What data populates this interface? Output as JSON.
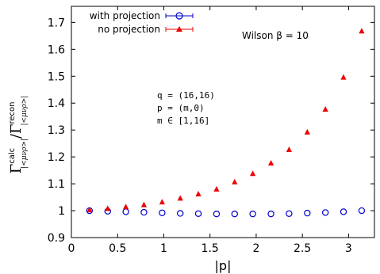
{
  "chart_data": {
    "type": "scatter",
    "xlabel": "|p|",
    "ylabel": {
      "numerator": {
        "base": "Γ",
        "sup": "calc",
        "sub": "|<μνρ>|"
      },
      "separator": "/",
      "denominator": {
        "base": "Γ",
        "sup": "recon",
        "sub": "|<μνρ>|"
      }
    },
    "xlim": [
      0,
      3.28
    ],
    "ylim": [
      0.9,
      1.76
    ],
    "xticks": [
      "0",
      "0.5",
      "1",
      "1.5",
      "2",
      "2.5",
      "3"
    ],
    "xtick_values": [
      0,
      0.5,
      1,
      1.5,
      2,
      2.5,
      3
    ],
    "yticks": [
      "0.9",
      "1",
      "1.1",
      "1.2",
      "1.3",
      "1.4",
      "1.5",
      "1.6",
      "1.7"
    ],
    "ytick_values": [
      0.9,
      1.0,
      1.1,
      1.2,
      1.3,
      1.4,
      1.5,
      1.6,
      1.7
    ],
    "grid": false,
    "legend_position": "top-left",
    "series": [
      {
        "name": "with projection",
        "marker": "open-circle",
        "color": "#0000cc",
        "x": [
          0.196,
          0.393,
          0.589,
          0.785,
          0.982,
          1.178,
          1.374,
          1.571,
          1.767,
          1.963,
          2.16,
          2.356,
          2.553,
          2.749,
          2.945,
          3.142
        ],
        "y": [
          1.0,
          0.998,
          0.996,
          0.994,
          0.992,
          0.99,
          0.989,
          0.988,
          0.988,
          0.988,
          0.988,
          0.989,
          0.991,
          0.993,
          0.996,
          1.0
        ]
      },
      {
        "name": "no projection",
        "marker": "filled-triangle",
        "color": "#ee0000",
        "x": [
          0.196,
          0.393,
          0.589,
          0.785,
          0.982,
          1.178,
          1.374,
          1.571,
          1.767,
          1.963,
          2.16,
          2.356,
          2.553,
          2.749,
          2.945,
          3.142
        ],
        "y": [
          1.003,
          1.008,
          1.014,
          1.022,
          1.032,
          1.046,
          1.062,
          1.08,
          1.107,
          1.138,
          1.177,
          1.227,
          1.292,
          1.377,
          1.496,
          1.668
        ]
      }
    ],
    "annotations": {
      "wilson": "Wilson β = 10",
      "mono_lines": [
        "q = (16,16)",
        "p = (m,0)",
        "m ∈ [1,16]"
      ]
    }
  }
}
